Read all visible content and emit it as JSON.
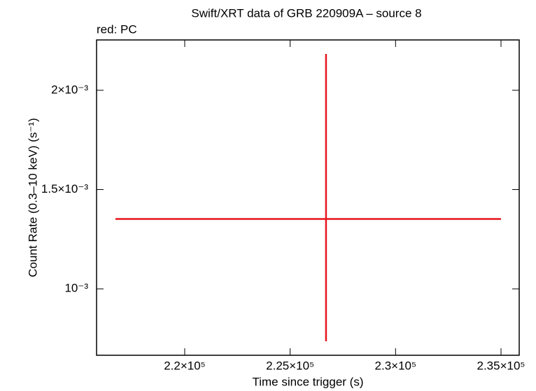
{
  "chart_data": {
    "type": "errorbar",
    "title": "Swift/XRT data of GRB 220909A – source 8",
    "xlabel": "Time since trigger (s)",
    "ylabel": "Count Rate (0.3–10 keV) (s⁻¹)",
    "series": [
      {
        "name": "red: PC",
        "color": "#e8141c",
        "x": [
          226702
        ],
        "xerr_minus": [
          9987
        ],
        "xerr_plus": [
          8298
        ],
        "values": [
          0.001352
        ],
        "yerr_minus": [
          0.000616
        ],
        "yerr_plus": [
          0.000831
        ]
      }
    ],
    "xlim": [
      215820,
      235863
    ],
    "xticks": [
      {
        "value": 220000,
        "label": "2.2×10⁵"
      },
      {
        "value": 225000,
        "label": "2.25×10⁵"
      },
      {
        "value": 230000,
        "label": "2.3×10⁵"
      },
      {
        "value": 235000,
        "label": "2.35×10⁵"
      }
    ],
    "ylim": [
      0.0006655,
      0.0022535
    ],
    "yticks": [
      {
        "value": 0.001,
        "label": "10⁻³"
      },
      {
        "value": 0.0015,
        "label": "1.5×10⁻³"
      },
      {
        "value": 0.002,
        "label": "2×10⁻³"
      }
    ]
  }
}
